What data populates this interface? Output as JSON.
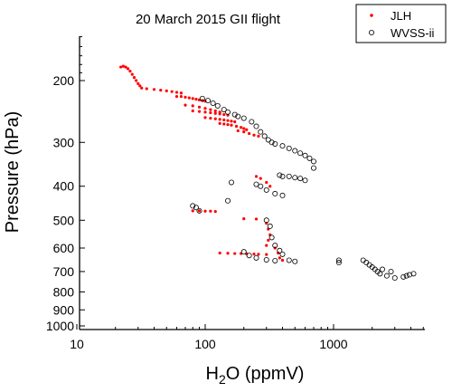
{
  "chart_data": {
    "type": "scatter",
    "title": "20 March 2015 GII flight",
    "xlabel_parts": [
      "H",
      "2",
      "O  (ppmV)"
    ],
    "ylabel": "Pressure  (hPa)",
    "x_scale": "log",
    "y_scale": "log",
    "y_inverted": true,
    "xlim": [
      10,
      5000
    ],
    "ylim": [
      150,
      1000
    ],
    "x_ticks": [
      10,
      100,
      1000
    ],
    "x_tick_labels": [
      "10",
      "100",
      "1000"
    ],
    "y_ticks": [
      200,
      300,
      400,
      500,
      600,
      700,
      800,
      900,
      1000
    ],
    "y_tick_labels": [
      "200",
      "300",
      "400",
      "500",
      "600",
      "700",
      "800",
      "900",
      "1000"
    ],
    "legend_position": "top-right",
    "series": [
      {
        "name": "JLH",
        "color": "#ff0000",
        "marker": "filled-dot",
        "points": [
          [
            22,
            183
          ],
          [
            23,
            182
          ],
          [
            24,
            183
          ],
          [
            25,
            185
          ],
          [
            26,
            188
          ],
          [
            27,
            192
          ],
          [
            28,
            196
          ],
          [
            29,
            200
          ],
          [
            30,
            204
          ],
          [
            31,
            207
          ],
          [
            32,
            210
          ],
          [
            35,
            211
          ],
          [
            40,
            212
          ],
          [
            45,
            213
          ],
          [
            50,
            214
          ],
          [
            55,
            215
          ],
          [
            60,
            216
          ],
          [
            65,
            217
          ],
          [
            60,
            222
          ],
          [
            65,
            222
          ],
          [
            70,
            223
          ],
          [
            75,
            224
          ],
          [
            80,
            225
          ],
          [
            85,
            226
          ],
          [
            90,
            227
          ],
          [
            95,
            228
          ],
          [
            100,
            229
          ],
          [
            70,
            235
          ],
          [
            80,
            236
          ],
          [
            90,
            238
          ],
          [
            100,
            240
          ],
          [
            110,
            242
          ],
          [
            120,
            244
          ],
          [
            130,
            246
          ],
          [
            80,
            244
          ],
          [
            90,
            245
          ],
          [
            100,
            246
          ],
          [
            110,
            247
          ],
          [
            120,
            248
          ],
          [
            130,
            249
          ],
          [
            140,
            250
          ],
          [
            150,
            251
          ],
          [
            100,
            255
          ],
          [
            110,
            256
          ],
          [
            120,
            257
          ],
          [
            130,
            258
          ],
          [
            140,
            259
          ],
          [
            150,
            260
          ],
          [
            160,
            261
          ],
          [
            170,
            262
          ],
          [
            130,
            265
          ],
          [
            140,
            266
          ],
          [
            150,
            267
          ],
          [
            160,
            268
          ],
          [
            175,
            270
          ],
          [
            190,
            272
          ],
          [
            200,
            274
          ],
          [
            210,
            276
          ],
          [
            180,
            278
          ],
          [
            200,
            280
          ],
          [
            220,
            283
          ],
          [
            240,
            286
          ],
          [
            260,
            288
          ],
          [
            250,
            375
          ],
          [
            270,
            380
          ],
          [
            300,
            390
          ],
          [
            320,
            400
          ],
          [
            80,
            470
          ],
          [
            90,
            470
          ],
          [
            100,
            471
          ],
          [
            110,
            471
          ],
          [
            120,
            472
          ],
          [
            200,
            495
          ],
          [
            250,
            496
          ],
          [
            300,
            510
          ],
          [
            310,
            530
          ],
          [
            320,
            550
          ],
          [
            310,
            570
          ],
          [
            300,
            590
          ],
          [
            130,
            620
          ],
          [
            150,
            621
          ],
          [
            170,
            622
          ],
          [
            190,
            622
          ],
          [
            210,
            623
          ],
          [
            240,
            624
          ],
          [
            260,
            625
          ],
          [
            300,
            626
          ],
          [
            350,
            600
          ],
          [
            370,
            620
          ],
          [
            380,
            640
          ],
          [
            400,
            650
          ]
        ]
      },
      {
        "name": "WVSS-ii",
        "color": "#000000",
        "marker": "open-circle",
        "points": [
          [
            95,
            225
          ],
          [
            105,
            228
          ],
          [
            115,
            232
          ],
          [
            125,
            236
          ],
          [
            140,
            242
          ],
          [
            150,
            246
          ],
          [
            170,
            250
          ],
          [
            180,
            253
          ],
          [
            200,
            256
          ],
          [
            230,
            262
          ],
          [
            250,
            270
          ],
          [
            270,
            280
          ],
          [
            290,
            288
          ],
          [
            310,
            295
          ],
          [
            330,
            300
          ],
          [
            350,
            303
          ],
          [
            400,
            307
          ],
          [
            450,
            312
          ],
          [
            500,
            317
          ],
          [
            550,
            322
          ],
          [
            600,
            327
          ],
          [
            650,
            333
          ],
          [
            700,
            340
          ],
          [
            700,
            355
          ],
          [
            380,
            372
          ],
          [
            400,
            375
          ],
          [
            450,
            375
          ],
          [
            500,
            378
          ],
          [
            550,
            380
          ],
          [
            600,
            385
          ],
          [
            250,
            395
          ],
          [
            270,
            400
          ],
          [
            300,
            410
          ],
          [
            350,
            420
          ],
          [
            400,
            425
          ],
          [
            160,
            390
          ],
          [
            150,
            440
          ],
          [
            80,
            455
          ],
          [
            85,
            460
          ],
          [
            90,
            470
          ],
          [
            300,
            500
          ],
          [
            320,
            520
          ],
          [
            330,
            560
          ],
          [
            350,
            590
          ],
          [
            380,
            610
          ],
          [
            400,
            625
          ],
          [
            200,
            615
          ],
          [
            220,
            630
          ],
          [
            250,
            640
          ],
          [
            300,
            648
          ],
          [
            350,
            652
          ],
          [
            450,
            650
          ],
          [
            500,
            655
          ],
          [
            1100,
            650
          ],
          [
            1100,
            660
          ],
          [
            1700,
            650
          ],
          [
            1800,
            660
          ],
          [
            1900,
            670
          ],
          [
            2000,
            680
          ],
          [
            2100,
            690
          ],
          [
            2200,
            700
          ],
          [
            2300,
            710
          ],
          [
            2400,
            690
          ],
          [
            2600,
            720
          ],
          [
            2800,
            700
          ],
          [
            3000,
            730
          ],
          [
            3500,
            725
          ],
          [
            3700,
            720
          ],
          [
            3900,
            715
          ],
          [
            4200,
            710
          ]
        ]
      }
    ]
  }
}
